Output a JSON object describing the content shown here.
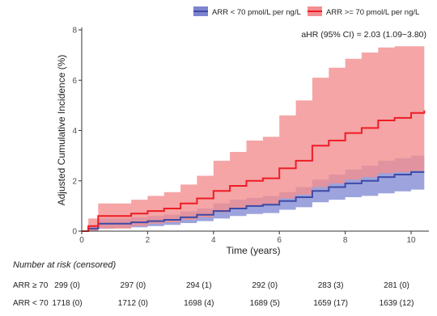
{
  "chart_data": {
    "type": "line",
    "ylabel": "Adjusted Cumulative Incidence (%)",
    "xlabel": "Time (years)",
    "xlim": [
      0,
      10.5
    ],
    "ylim": [
      0,
      8
    ],
    "xticks": [
      0,
      2,
      4,
      6,
      8,
      10
    ],
    "yticks": [
      0,
      2,
      4,
      6,
      8
    ],
    "grid": false,
    "legend_position": "top-right",
    "annotation": "aHR (95% CI) = 2.03 (1.09−3.80)",
    "series": [
      {
        "name": "ARR < 70 pmol/L per ng/L",
        "color": "#3f4aa6",
        "band_color": "#7c84d0",
        "x": [
          0,
          0.2,
          0.5,
          1.0,
          1.5,
          2.0,
          2.5,
          3.0,
          3.5,
          4.0,
          4.5,
          5.0,
          5.5,
          6.0,
          6.5,
          7.0,
          7.5,
          8.0,
          8.5,
          9.0,
          9.5,
          10.0,
          10.4
        ],
        "y": [
          0,
          0.1,
          0.3,
          0.3,
          0.35,
          0.4,
          0.45,
          0.55,
          0.65,
          0.8,
          0.9,
          1.0,
          1.05,
          1.2,
          1.35,
          1.6,
          1.75,
          1.9,
          2.0,
          2.15,
          2.25,
          2.35,
          2.35
        ],
        "lower": [
          0,
          0.0,
          0.1,
          0.12,
          0.15,
          0.2,
          0.25,
          0.32,
          0.4,
          0.5,
          0.6,
          0.68,
          0.72,
          0.85,
          0.95,
          1.15,
          1.25,
          1.35,
          1.4,
          1.5,
          1.58,
          1.65,
          1.68
        ],
        "upper": [
          0,
          0.2,
          0.5,
          0.5,
          0.55,
          0.6,
          0.65,
          0.78,
          0.9,
          1.1,
          1.25,
          1.32,
          1.4,
          1.55,
          1.75,
          2.05,
          2.25,
          2.45,
          2.6,
          2.8,
          2.9,
          3.0,
          3.0
        ]
      },
      {
        "name": "ARR >= 70 pmol/L per ng/L",
        "color": "#ee1c25",
        "band_color": "#f28e90",
        "x": [
          0,
          0.2,
          0.5,
          1.0,
          1.5,
          2.0,
          2.5,
          3.0,
          3.5,
          4.0,
          4.5,
          5.0,
          5.5,
          6.0,
          6.5,
          7.0,
          7.5,
          8.0,
          8.5,
          9.0,
          9.5,
          10.0,
          10.4
        ],
        "y": [
          0,
          0.2,
          0.6,
          0.6,
          0.7,
          0.8,
          0.9,
          1.1,
          1.3,
          1.6,
          1.8,
          2.0,
          2.1,
          2.5,
          2.8,
          3.4,
          3.6,
          3.9,
          4.1,
          4.4,
          4.5,
          4.7,
          4.8
        ],
        "lower": [
          0,
          0.0,
          0.1,
          0.1,
          0.2,
          0.3,
          0.35,
          0.45,
          0.55,
          0.75,
          0.9,
          1.0,
          1.05,
          1.3,
          1.45,
          1.75,
          1.9,
          2.05,
          2.15,
          2.3,
          2.35,
          2.4,
          2.4
        ],
        "upper": [
          0,
          0.5,
          1.1,
          1.1,
          1.25,
          1.4,
          1.55,
          1.85,
          2.2,
          2.8,
          3.15,
          3.6,
          3.75,
          4.6,
          5.2,
          6.1,
          6.5,
          6.85,
          7.1,
          7.3,
          7.35,
          7.35,
          7.4
        ]
      }
    ]
  },
  "risk_table": {
    "title": "Number at risk (censored)",
    "rows": [
      {
        "label": "ARR ≥ 70",
        "values": [
          "299 (0)",
          "297 (0)",
          "294 (1)",
          "292 (0)",
          "283 (3)",
          "281 (0)"
        ]
      },
      {
        "label": "ARR < 70",
        "values": [
          "1718 (0)",
          "1712 (0)",
          "1698 (4)",
          "1689 (5)",
          "1659 (17)",
          "1639 (12)"
        ]
      }
    ]
  }
}
